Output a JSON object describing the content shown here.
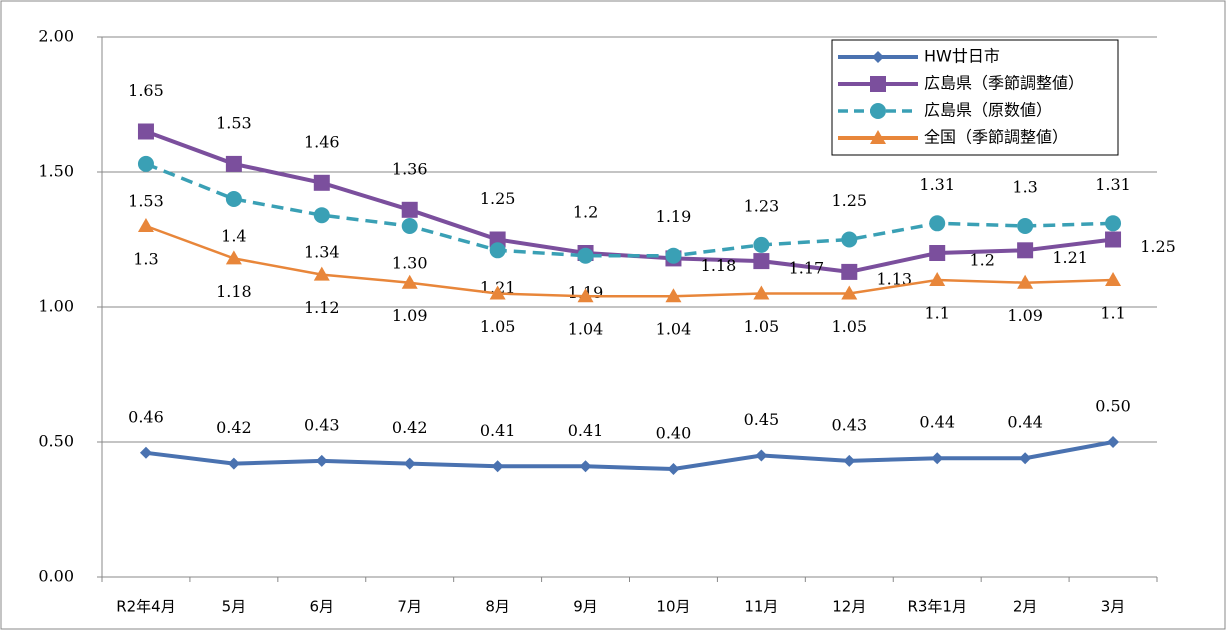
{
  "chart_data": {
    "type": "line",
    "categories": [
      "R2年4月",
      "5月",
      "6月",
      "7月",
      "8月",
      "9月",
      "10月",
      "11月",
      "12月",
      "R3年1月",
      "2月",
      "3月"
    ],
    "ylim": [
      0,
      2
    ],
    "yticks": [
      {
        "value": 0,
        "label": "0.00"
      },
      {
        "value": 0.5,
        "label": "0.50"
      },
      {
        "value": 1,
        "label": "1.00"
      },
      {
        "value": 1.5,
        "label": "1.50"
      },
      {
        "value": 2,
        "label": "2.00"
      }
    ],
    "grid": true,
    "legend": "top-right",
    "series": [
      {
        "name": "HW廿日市",
        "color": "#4a72b0",
        "marker": "diamond",
        "dashed": false,
        "values": [
          0.46,
          0.42,
          0.43,
          0.42,
          0.41,
          0.41,
          0.4,
          0.45,
          0.43,
          0.44,
          0.44,
          0.5
        ],
        "value_labels": [
          "0.46",
          "0.42",
          "0.43",
          "0.42",
          "0.41",
          "0.41",
          "0.40",
          "0.45",
          "0.43",
          "0.44",
          "0.44",
          "0.50"
        ]
      },
      {
        "name": "広島県（季節調整値）",
        "color": "#7b4f9d",
        "marker": "square",
        "dashed": false,
        "values": [
          1.65,
          1.53,
          1.46,
          1.36,
          1.25,
          1.2,
          1.18,
          1.17,
          1.13,
          1.2,
          1.21,
          1.25
        ],
        "value_labels": [
          "1.65",
          "1.53",
          "1.46",
          "1.36",
          "1.25",
          "1.2",
          "1.18",
          "1.17",
          "1.13",
          "1.2",
          "1.21",
          "1.25"
        ]
      },
      {
        "name": "広島県（原数値）",
        "color": "#3aa0b5",
        "marker": "circle",
        "dashed": true,
        "values": [
          1.53,
          1.4,
          1.34,
          1.3,
          1.21,
          1.19,
          1.19,
          1.23,
          1.25,
          1.31,
          1.3,
          1.31
        ],
        "value_labels": [
          "1.53",
          "1.4",
          "1.34",
          "1.30",
          "1.21",
          "1.19",
          "1.19",
          "1.23",
          "1.25",
          "1.31",
          "1.3",
          "1.31"
        ]
      },
      {
        "name": "全国（季節調整値）",
        "color": "#e8863a",
        "marker": "triangle",
        "dashed": false,
        "values": [
          1.3,
          1.18,
          1.12,
          1.09,
          1.05,
          1.04,
          1.04,
          1.05,
          1.05,
          1.1,
          1.09,
          1.1
        ],
        "value_labels": [
          "1.3",
          "1.18",
          "1.12",
          "1.09",
          "1.05",
          "1.04",
          "1.04",
          "1.05",
          "1.05",
          "1.1",
          "1.09",
          "1.1"
        ]
      }
    ]
  }
}
